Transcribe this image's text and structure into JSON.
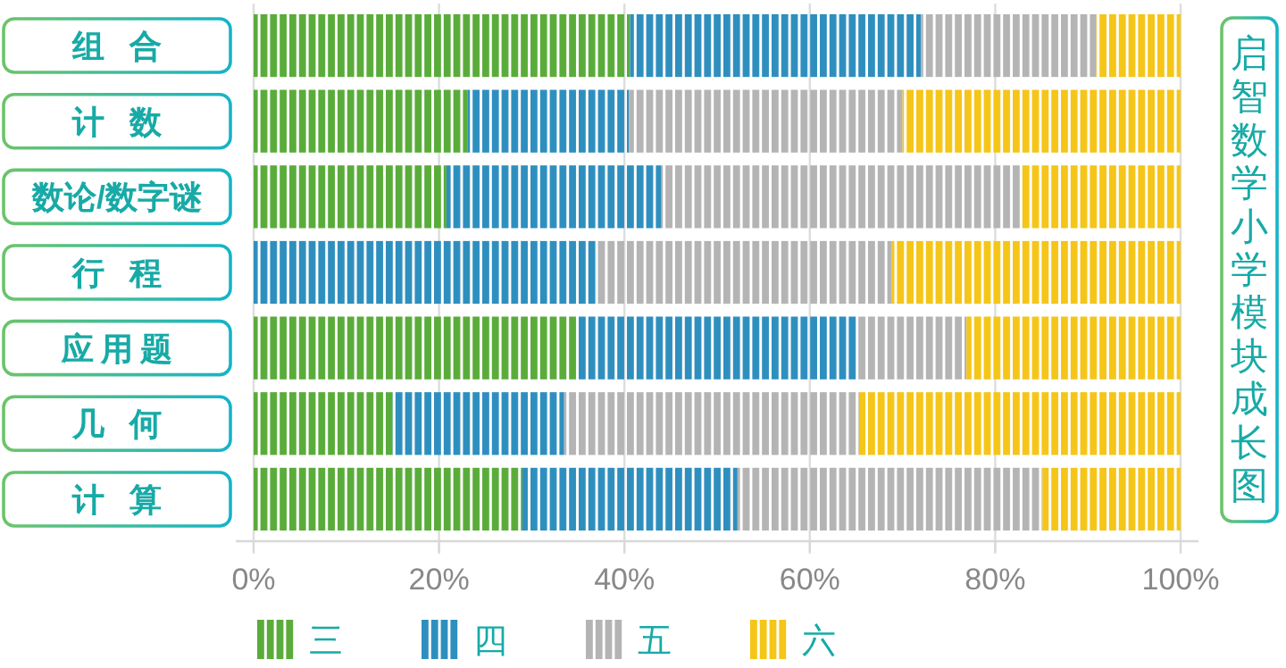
{
  "chart_data": {
    "type": "bar",
    "orientation": "horizontal",
    "stacked": true,
    "title": "启智数学小学模块成长图",
    "categories": [
      "组合",
      "计数",
      "数论/数字谜",
      "行程",
      "应用题",
      "几何",
      "计算"
    ],
    "series": [
      {
        "name": "三",
        "color": "#5aac3a",
        "values": [
          40.6,
          23.1,
          20.8,
          0,
          34.8,
          15,
          29
        ]
      },
      {
        "name": "四",
        "color": "#2e8fbf",
        "values": [
          31.4,
          17.4,
          23.2,
          37.1,
          30.3,
          18.5,
          23.2
        ]
      },
      {
        "name": "五",
        "color": "#b4b4b4",
        "values": [
          18.9,
          29.5,
          38.7,
          31.7,
          11.8,
          31.8,
          32.9
        ]
      },
      {
        "name": "六",
        "color": "#f5c518",
        "values": [
          9.1,
          30,
          17.3,
          31.2,
          23.1,
          34.7,
          14.9
        ]
      }
    ],
    "xlim": [
      0,
      100
    ],
    "xticks": [
      {
        "value": 0,
        "label": "0%"
      },
      {
        "value": 20,
        "label": "20%"
      },
      {
        "value": 40,
        "label": "40%"
      },
      {
        "value": 60,
        "label": "60%"
      },
      {
        "value": 80,
        "label": "80%"
      },
      {
        "value": 100,
        "label": "100%"
      }
    ],
    "grid": "x",
    "legend": "bottom"
  }
}
